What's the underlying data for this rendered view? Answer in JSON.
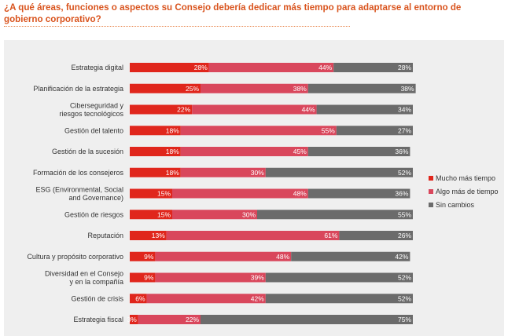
{
  "title": "¿A qué áreas, funciones o aspectos su Consejo debería dedicar más tiempo para adaptarse al entorno de gobierno corporativo?",
  "colors": {
    "mucho": "#e0261c",
    "algo": "#d9475c",
    "sin": "#6b6b6b",
    "panel": "#efefef",
    "title": "#d9541e"
  },
  "chart_data": {
    "type": "bar",
    "orientation": "horizontal",
    "stacked": true,
    "xlim": [
      0,
      100
    ],
    "title": "¿A qué áreas, funciones o aspectos su Consejo debería dedicar más tiempo para adaptarse al entorno de gobierno corporativo?",
    "categories": [
      [
        "Estrategia digital"
      ],
      [
        "Planificación de la estrategia"
      ],
      [
        "Ciberseguridad y",
        "riesgos tecnológicos"
      ],
      [
        "Gestión del talento"
      ],
      [
        "Gestión de la sucesión"
      ],
      [
        "Formación de los consejeros"
      ],
      [
        "ESG (Environmental, Social",
        "and Governance)"
      ],
      [
        "Gestión de riesgos"
      ],
      [
        "Reputación"
      ],
      [
        "Cultura y propósito corporativo"
      ],
      [
        "Diversidad en el Consejo",
        "y en la compañía"
      ],
      [
        "Gestión de crisis"
      ],
      [
        "Estrategia fiscal"
      ]
    ],
    "series": [
      {
        "name": "Mucho más tiempo",
        "color": "#e0261c",
        "values": [
          28,
          25,
          22,
          18,
          18,
          18,
          15,
          15,
          13,
          9,
          9,
          6,
          3
        ]
      },
      {
        "name": "Algo más de tiempo",
        "color": "#d9475c",
        "values": [
          44,
          38,
          44,
          55,
          45,
          30,
          48,
          30,
          61,
          48,
          39,
          42,
          22
        ]
      },
      {
        "name": "Sin cambios",
        "color": "#6b6b6b",
        "values": [
          28,
          38,
          34,
          27,
          36,
          52,
          36,
          55,
          26,
          42,
          52,
          52,
          75
        ]
      }
    ],
    "legend": [
      "Mucho más tiempo",
      "Algo más de tiempo",
      "Sin cambios"
    ],
    "legend_position": "right"
  }
}
